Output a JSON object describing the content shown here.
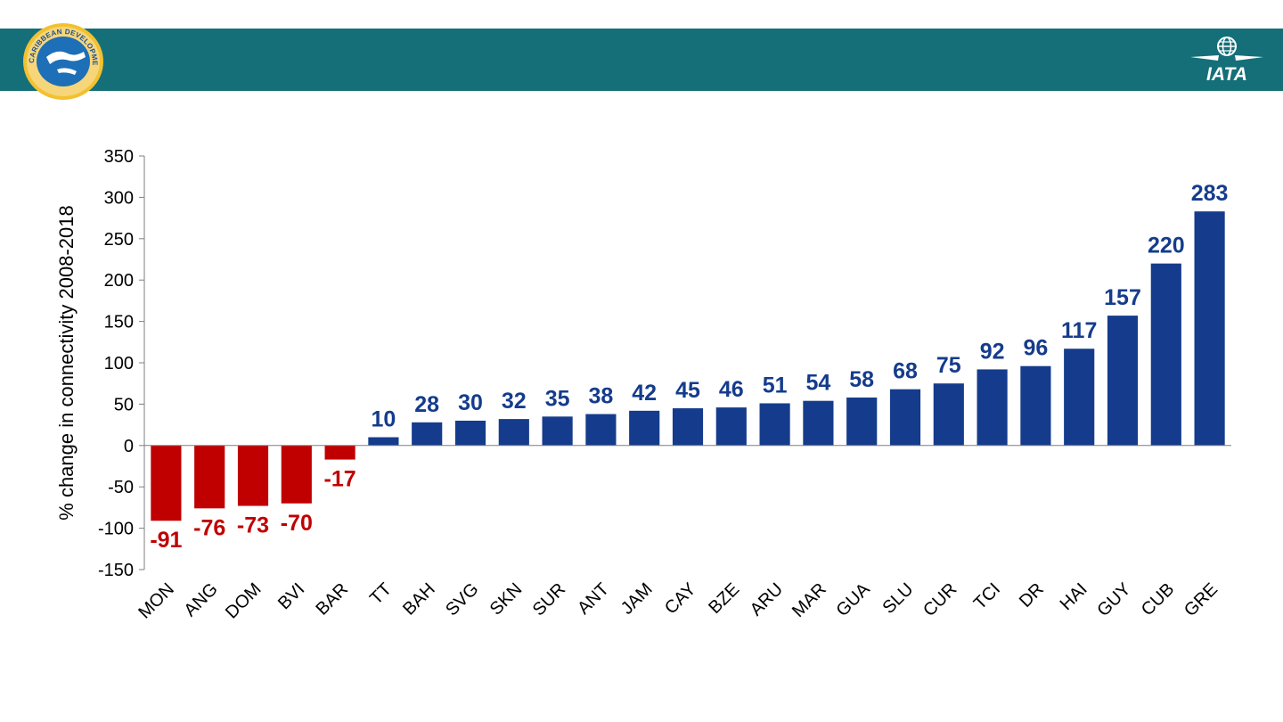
{
  "header": {
    "left_logo": {
      "icon": "caribbean-development-bank-seal",
      "text": "CARIBBEAN DEVELOPMENT BANK"
    },
    "right_logo": {
      "icon": "iata-logo",
      "text": "IATA"
    },
    "band_color": "#156f78"
  },
  "chart_data": {
    "type": "bar",
    "categories": [
      "MON",
      "ANG",
      "DOM",
      "BVI",
      "BAR",
      "TT",
      "BAH",
      "SVG",
      "SKN",
      "SUR",
      "ANT",
      "JAM",
      "CAY",
      "BZE",
      "ARU",
      "MAR",
      "GUA",
      "SLU",
      "CUR",
      "TCI",
      "DR",
      "HAI",
      "GUY",
      "CUB",
      "GRE"
    ],
    "values": [
      -91,
      -76,
      -73,
      -70,
      -17,
      10,
      28,
      30,
      32,
      35,
      38,
      42,
      45,
      46,
      51,
      54,
      58,
      68,
      75,
      92,
      96,
      117,
      157,
      220,
      283
    ],
    "ylabel": "% change in connectivity 2008-2018",
    "ylim": [
      -150,
      350
    ],
    "yticks": [
      350,
      300,
      250,
      200,
      150,
      100,
      50,
      0,
      -50,
      -100,
      -150
    ],
    "positive_color": "#153c8c",
    "negative_color": "#c00000",
    "grid": false,
    "legend": "none"
  }
}
